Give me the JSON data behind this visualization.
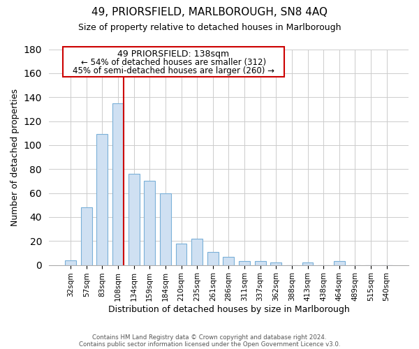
{
  "title": "49, PRIORSFIELD, MARLBOROUGH, SN8 4AQ",
  "subtitle": "Size of property relative to detached houses in Marlborough",
  "xlabel": "Distribution of detached houses by size in Marlborough",
  "ylabel": "Number of detached properties",
  "bar_color": "#cfe0f2",
  "bar_edge_color": "#7ab0d8",
  "categories": [
    "32sqm",
    "57sqm",
    "83sqm",
    "108sqm",
    "134sqm",
    "159sqm",
    "184sqm",
    "210sqm",
    "235sqm",
    "261sqm",
    "286sqm",
    "311sqm",
    "337sqm",
    "362sqm",
    "388sqm",
    "413sqm",
    "438sqm",
    "464sqm",
    "489sqm",
    "515sqm",
    "540sqm"
  ],
  "values": [
    4,
    48,
    109,
    135,
    76,
    70,
    60,
    18,
    22,
    11,
    7,
    3,
    3,
    2,
    0,
    2,
    0,
    3,
    0,
    0,
    0
  ],
  "ylim": [
    0,
    180
  ],
  "yticks": [
    0,
    20,
    40,
    60,
    80,
    100,
    120,
    140,
    160,
    180
  ],
  "vline_index": 3,
  "vline_color": "#cc0000",
  "annotation_title": "49 PRIORSFIELD: 138sqm",
  "annotation_line1": "← 54% of detached houses are smaller (312)",
  "annotation_line2": "45% of semi-detached houses are larger (260) →",
  "footnote1": "Contains HM Land Registry data © Crown copyright and database right 2024.",
  "footnote2": "Contains public sector information licensed under the Open Government Licence v3.0.",
  "background_color": "#ffffff",
  "grid_color": "#cccccc",
  "bar_width": 0.7
}
